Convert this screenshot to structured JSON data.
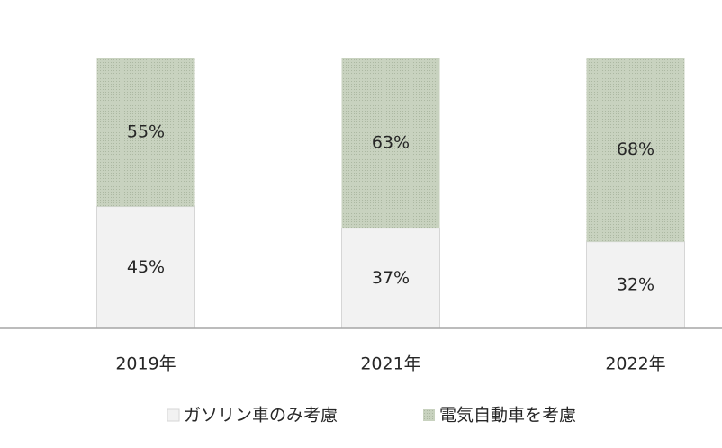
{
  "chart_data": {
    "type": "stacked-bar",
    "categories": [
      "2019年",
      "2021年",
      "2022年"
    ],
    "series": [
      {
        "name": "ガソリン車のみ考慮",
        "color": "#f2f2f2",
        "values": [
          45,
          37,
          32
        ],
        "value_labels": [
          "45%",
          "37%",
          "32%"
        ]
      },
      {
        "name": "電気自動車を考慮",
        "color": "#c8d2bf",
        "values": [
          55,
          63,
          68
        ],
        "value_labels": [
          "55%",
          "63%",
          "68%"
        ]
      }
    ],
    "ylim": [
      0,
      100
    ]
  }
}
